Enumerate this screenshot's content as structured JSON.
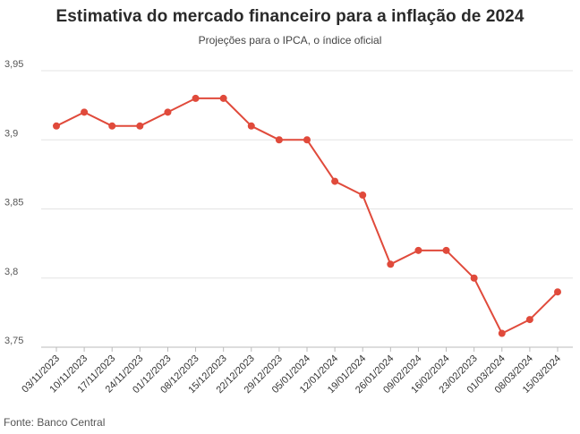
{
  "header": {
    "title": "Estimativa do mercado financeiro para a inflação de 2024",
    "subtitle": "Projeções para o IPCA, o índice oficial"
  },
  "footer": {
    "source": "Fonte: Banco Central"
  },
  "colors": {
    "line": "#e04a3b",
    "grid": "#e3e3e3",
    "baseline": "#bbbbbb"
  },
  "chart_data": {
    "type": "line",
    "title": "Estimativa do mercado financeiro para a inflação de 2024",
    "subtitle": "Projeções para o IPCA, o índice oficial",
    "xlabel": "",
    "ylabel": "",
    "ylim": [
      3.75,
      3.95
    ],
    "yticks": [
      3.75,
      3.8,
      3.85,
      3.9,
      3.95
    ],
    "ytick_labels": [
      "3,75",
      "3,8",
      "3,85",
      "3,9",
      "3,95"
    ],
    "grid": true,
    "categories": [
      "03/11/2023",
      "10/11/2023",
      "17/11/2023",
      "24/11/2023",
      "01/12/2023",
      "08/12/2023",
      "15/12/2023",
      "22/12/2023",
      "29/12/2023",
      "05/01/2024",
      "12/01/2024",
      "19/01/2024",
      "26/01/2024",
      "09/02/2024",
      "16/02/2024",
      "23/02/2023",
      "01/03/2024",
      "08/03/2024",
      "15/03/2024"
    ],
    "series": [
      {
        "values": [
          3.91,
          3.92,
          3.91,
          3.91,
          3.92,
          3.93,
          3.93,
          3.91,
          3.9,
          3.9,
          3.87,
          3.86,
          3.81,
          3.82,
          3.82,
          3.8,
          3.76,
          3.77,
          3.79
        ]
      }
    ]
  }
}
